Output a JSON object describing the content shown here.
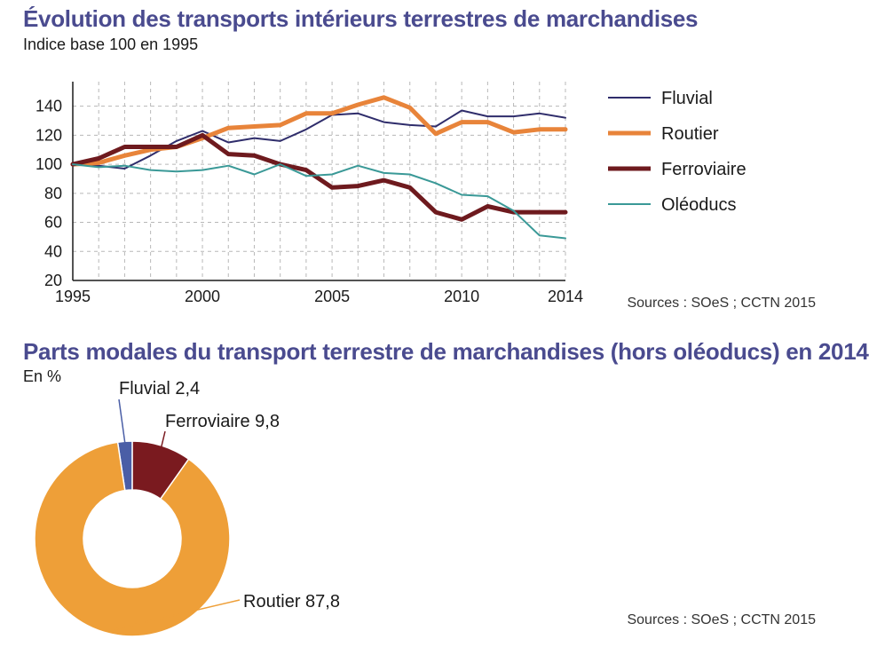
{
  "chart_data": [
    {
      "type": "line",
      "title": "Évolution des transports intérieurs terrestres de marchandises",
      "subtitle": "Indice base 100 en 1995",
      "source": "Sources : SOeS ; CCTN 2015",
      "xlabel": "",
      "ylabel": "",
      "x": [
        1995,
        1996,
        1997,
        1998,
        1999,
        2000,
        2001,
        2002,
        2003,
        2004,
        2005,
        2006,
        2007,
        2008,
        2009,
        2010,
        2011,
        2012,
        2013,
        2014
      ],
      "x_ticks": [
        "1995",
        "2000",
        "2005",
        "2010",
        "2014"
      ],
      "y_ticks": [
        "20",
        "40",
        "60",
        "80",
        "100",
        "120",
        "140"
      ],
      "ylim": [
        20,
        152
      ],
      "xlim": [
        1995,
        2014
      ],
      "grid": "dashed vertical and horizontal",
      "legend_position": "right",
      "series": [
        {
          "name": "Fluvial",
          "color": "#2f2d6b",
          "values": [
            100,
            99,
            97,
            106,
            116,
            123,
            115,
            118,
            116,
            124,
            134,
            135,
            129,
            127,
            126,
            137,
            133,
            133,
            135,
            132
          ]
        },
        {
          "name": "Routier",
          "color": "#e8843a",
          "values": [
            100,
            101,
            106,
            110,
            112,
            118,
            125,
            126,
            127,
            135,
            135,
            141,
            146,
            139,
            121,
            129,
            129,
            122,
            124,
            124
          ]
        },
        {
          "name": "Ferroviaire",
          "color": "#6e1a1e",
          "values": [
            100,
            104,
            112,
            112,
            112,
            120,
            107,
            106,
            100,
            96,
            84,
            85,
            89,
            84,
            67,
            62,
            71,
            67,
            67,
            67
          ]
        },
        {
          "name": "Oléoducs",
          "color": "#3a9997",
          "values": [
            100,
            98,
            99,
            96,
            95,
            96,
            99,
            93,
            100,
            92,
            93,
            99,
            94,
            93,
            87,
            79,
            78,
            68,
            51,
            49
          ]
        }
      ]
    },
    {
      "type": "pie",
      "title": "Parts modales du transport terrestre de marchandises (hors oléoducs) en 2014",
      "subtitle": "En %",
      "source": "Sources : SOeS ; CCTN 2015",
      "donut": true,
      "slices": [
        {
          "label": "Fluvial",
          "value": 2.4,
          "value_text": "2,4",
          "color": "#4a5ea6"
        },
        {
          "label": "Ferroviaire",
          "value": 9.8,
          "value_text": "9,8",
          "color": "#7a1a1f"
        },
        {
          "label": "Routier",
          "value": 87.8,
          "value_text": "87,8",
          "color": "#ee9f38"
        }
      ]
    }
  ]
}
